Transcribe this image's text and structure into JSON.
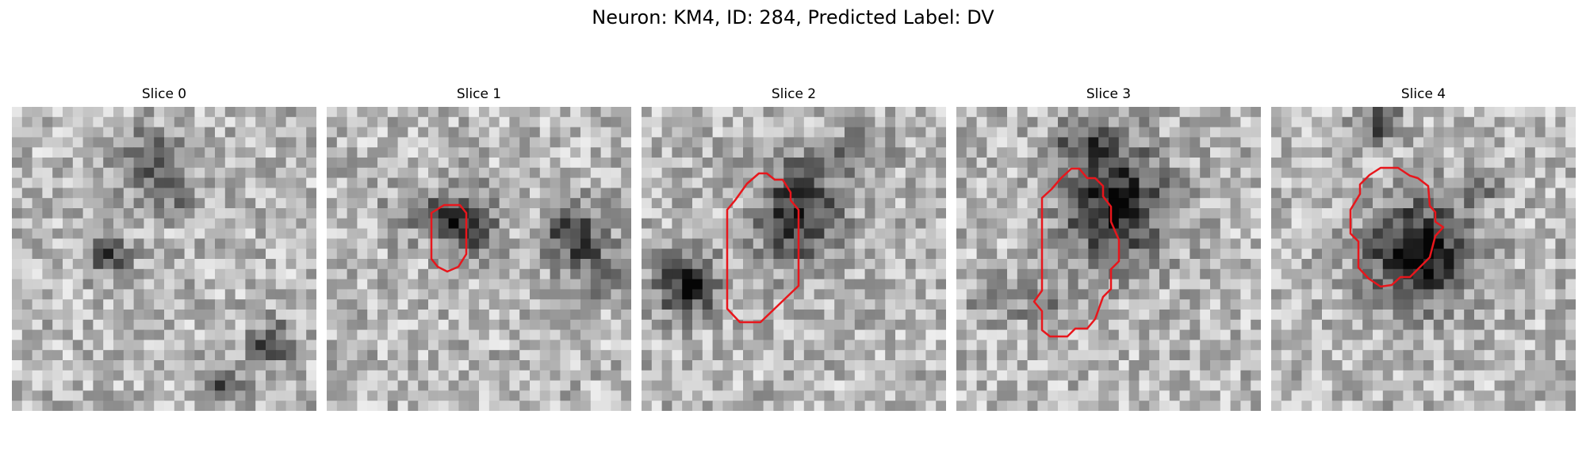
{
  "figure": {
    "title": "Neuron: KM4, ID: 284, Predicted Label: DV"
  },
  "panels": [
    {
      "title": "Slice 0"
    },
    {
      "title": "Slice 1"
    },
    {
      "title": "Slice 2"
    },
    {
      "title": "Slice 3"
    },
    {
      "title": "Slice 4"
    }
  ],
  "colors": {
    "contour": "#e8161c",
    "colormap": "grayscale"
  }
}
